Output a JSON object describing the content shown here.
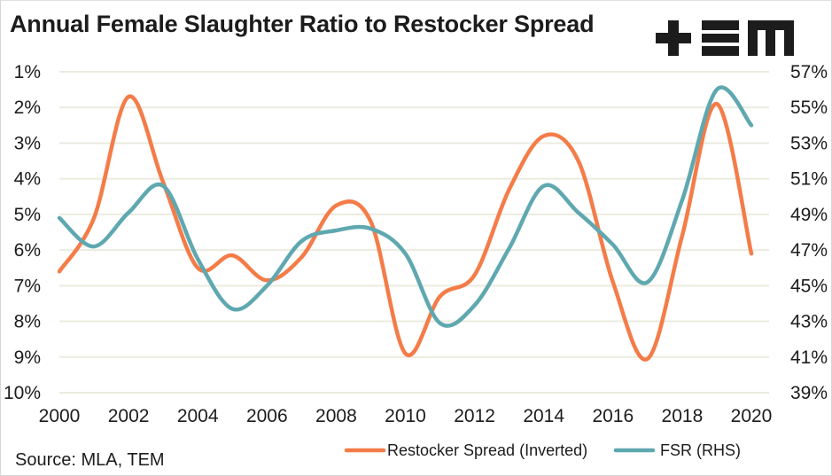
{
  "chart_data": {
    "type": "line",
    "title": "Annual Female Slaughter Ratio to Restocker Spread",
    "source": "Source: MLA, TEM",
    "brand": "+EM",
    "x": [
      2000,
      2001,
      2002,
      2003,
      2004,
      2005,
      2006,
      2007,
      2008,
      2009,
      2010,
      2011,
      2012,
      2013,
      2014,
      2015,
      2016,
      2017,
      2018,
      2019,
      2020
    ],
    "x_ticks": [
      "2000",
      "2002",
      "2004",
      "2006",
      "2008",
      "2010",
      "2012",
      "2014",
      "2016",
      "2018",
      "2020"
    ],
    "x_tick_values": [
      2000,
      2002,
      2004,
      2006,
      2008,
      2010,
      2012,
      2014,
      2016,
      2018,
      2020
    ],
    "xlim": [
      2000,
      2020
    ],
    "left_axis": {
      "label": "",
      "inverted": true,
      "ylim": [
        1,
        10
      ],
      "ticks": [
        "1%",
        "2%",
        "3%",
        "4%",
        "5%",
        "6%",
        "7%",
        "8%",
        "9%",
        "10%"
      ],
      "tick_values": [
        1,
        2,
        3,
        4,
        5,
        6,
        7,
        8,
        9,
        10
      ]
    },
    "right_axis": {
      "label": "",
      "ylim": [
        39,
        57
      ],
      "ticks": [
        "57%",
        "55%",
        "53%",
        "51%",
        "49%",
        "47%",
        "45%",
        "43%",
        "41%",
        "39%"
      ],
      "tick_values": [
        57,
        55,
        53,
        51,
        49,
        47,
        45,
        43,
        41,
        39
      ]
    },
    "grid": true,
    "legend_position": "bottom-right",
    "series": [
      {
        "name": "Restocker Spread (Inverted)",
        "axis": "left",
        "color": "#f47c48",
        "values": [
          6.6,
          5.1,
          1.7,
          4.1,
          6.5,
          6.15,
          6.85,
          6.2,
          4.75,
          5.2,
          8.9,
          7.3,
          6.7,
          4.3,
          2.8,
          3.5,
          6.9,
          9.05,
          5.6,
          1.9,
          6.1
        ]
      },
      {
        "name": "FSR (RHS)",
        "axis": "right",
        "color": "#5fa8b0",
        "values": [
          48.8,
          47.2,
          49.1,
          50.6,
          46.5,
          43.7,
          45.0,
          47.5,
          48.1,
          48.2,
          46.8,
          42.9,
          43.9,
          47.1,
          50.6,
          49.1,
          47.3,
          45.2,
          49.8,
          56.0,
          54.0
        ]
      }
    ]
  }
}
